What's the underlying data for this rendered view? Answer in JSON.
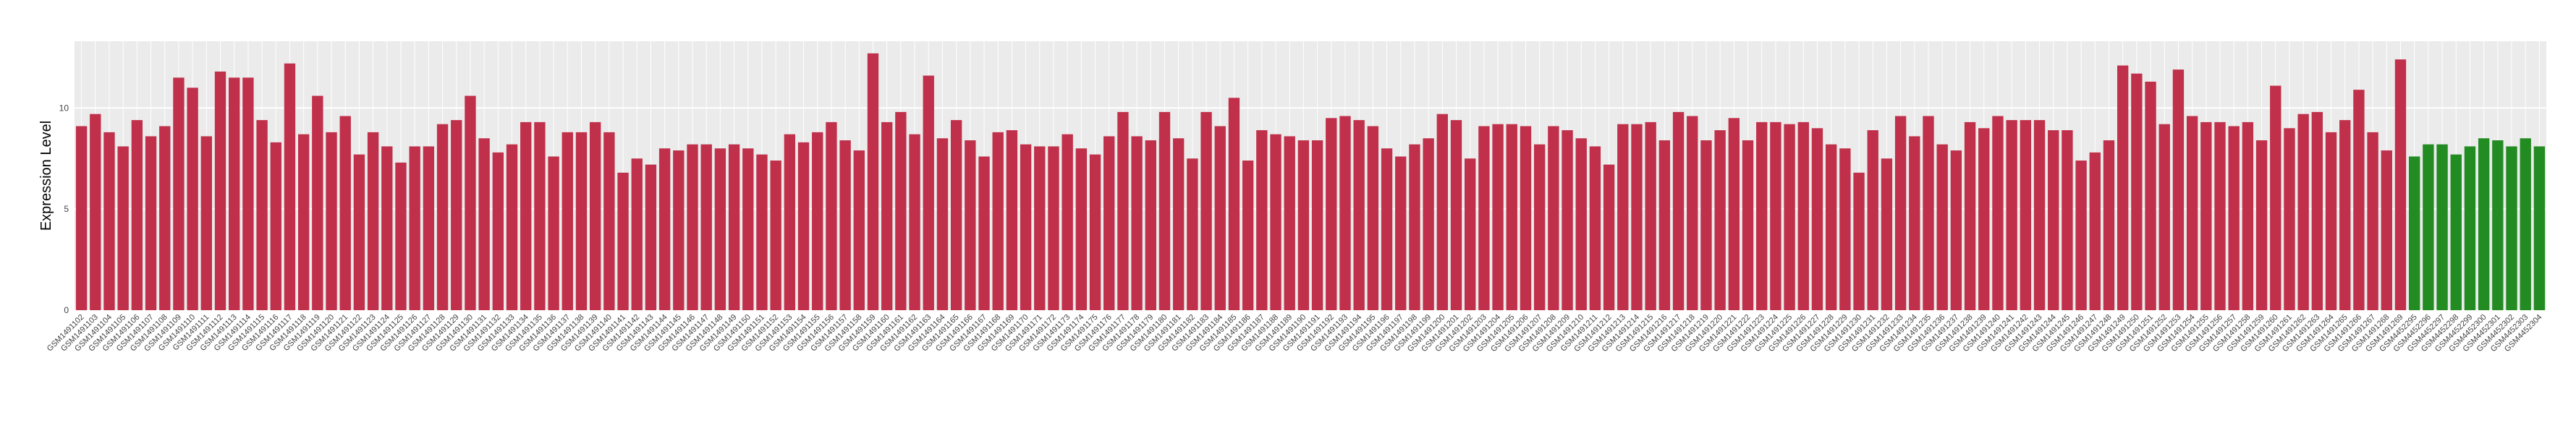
{
  "chart_data": {
    "type": "bar",
    "y_label": "Expression Level",
    "categories": [
      "GSM1491102",
      "GSM1491103",
      "GSM1491104",
      "GSM1491105",
      "GSM1491106",
      "GSM1491107",
      "GSM1491108",
      "GSM1491109",
      "GSM1491110",
      "GSM1491111",
      "GSM1491112",
      "GSM1491113",
      "GSM1491114",
      "GSM1491115",
      "GSM1491116",
      "GSM1491117",
      "GSM1491118",
      "GSM1491119",
      "GSM1491120",
      "GSM1491121",
      "GSM1491122",
      "GSM1491123",
      "GSM1491124",
      "GSM1491125",
      "GSM1491126",
      "GSM1491127",
      "GSM1491128",
      "GSM1491129",
      "GSM1491130",
      "GSM1491131",
      "GSM1491132",
      "GSM1491133",
      "GSM1491134",
      "GSM1491135",
      "GSM1491136",
      "GSM1491137",
      "GSM1491138",
      "GSM1491139",
      "GSM1491140",
      "GSM1491141",
      "GSM1491142",
      "GSM1491143",
      "GSM1491144",
      "GSM1491145",
      "GSM1491146",
      "GSM1491147",
      "GSM1491148",
      "GSM1491149",
      "GSM1491150",
      "GSM1491151",
      "GSM1491152",
      "GSM1491153",
      "GSM1491154",
      "GSM1491155",
      "GSM1491156",
      "GSM1491157",
      "GSM1491158",
      "GSM1491159",
      "GSM1491160",
      "GSM1491161",
      "GSM1491162",
      "GSM1491163",
      "GSM1491164",
      "GSM1491165",
      "GSM1491166",
      "GSM1491167",
      "GSM1491168",
      "GSM1491169",
      "GSM1491170",
      "GSM1491171",
      "GSM1491172",
      "GSM1491173",
      "GSM1491174",
      "GSM1491175",
      "GSM1491176",
      "GSM1491177",
      "GSM1491178",
      "GSM1491179",
      "GSM1491180",
      "GSM1491181",
      "GSM1491182",
      "GSM1491183",
      "GSM1491184",
      "GSM1491185",
      "GSM1491186",
      "GSM1491187",
      "GSM1491188",
      "GSM1491189",
      "GSM1491190",
      "GSM1491191",
      "GSM1491192",
      "GSM1491193",
      "GSM1491194",
      "GSM1491195",
      "GSM1491196",
      "GSM1491197",
      "GSM1491198",
      "GSM1491199",
      "GSM1491200",
      "GSM1491201",
      "GSM1491202",
      "GSM1491203",
      "GSM1491204",
      "GSM1491205",
      "GSM1491206",
      "GSM1491207",
      "GSM1491208",
      "GSM1491209",
      "GSM1491210",
      "GSM1491211",
      "GSM1491212",
      "GSM1491213",
      "GSM1491214",
      "GSM1491215",
      "GSM1491216",
      "GSM1491217",
      "GSM1491218",
      "GSM1491219",
      "GSM1491220",
      "GSM1491221",
      "GSM1491222",
      "GSM1491223",
      "GSM1491224",
      "GSM1491225",
      "GSM1491226",
      "GSM1491227",
      "GSM1491228",
      "GSM1491229",
      "GSM1491230",
      "GSM1491231",
      "GSM1491232",
      "GSM1491233",
      "GSM1491234",
      "GSM1491235",
      "GSM1491236",
      "GSM1491237",
      "GSM1491238",
      "GSM1491239",
      "GSM1491240",
      "GSM1491241",
      "GSM1491242",
      "GSM1491243",
      "GSM1491244",
      "GSM1491245",
      "GSM1491246",
      "GSM1491247",
      "GSM1491248",
      "GSM1491249",
      "GSM1491250",
      "GSM1491251",
      "GSM1491252",
      "GSM1491253",
      "GSM1491254",
      "GSM1491255",
      "GSM1491256",
      "GSM1491257",
      "GSM1491258",
      "GSM1491259",
      "GSM1491260",
      "GSM1491261",
      "GSM1491262",
      "GSM1491263",
      "GSM1491264",
      "GSM1491265",
      "GSM1491266",
      "GSM1491267",
      "GSM1491268",
      "GSM1491269",
      "GSM4452295",
      "GSM4452296",
      "GSM4452297",
      "GSM4452298",
      "GSM4452299",
      "GSM4452300",
      "GSM4452301",
      "GSM4452302",
      "GSM4452303",
      "GSM4452304"
    ],
    "values": [
      9.1,
      9.7,
      8.8,
      8.1,
      9.4,
      8.6,
      9.1,
      11.5,
      11.0,
      8.6,
      11.8,
      11.5,
      11.5,
      9.4,
      8.3,
      12.2,
      8.7,
      10.6,
      8.8,
      9.6,
      7.7,
      8.8,
      8.1,
      7.3,
      8.1,
      8.1,
      9.2,
      9.4,
      10.6,
      8.5,
      7.8,
      8.2,
      9.3,
      9.3,
      7.6,
      8.8,
      8.8,
      9.3,
      8.8,
      6.8,
      7.5,
      7.2,
      8.0,
      7.9,
      8.2,
      8.2,
      8.0,
      8.2,
      8.0,
      7.7,
      7.4,
      8.7,
      8.3,
      8.8,
      9.3,
      8.4,
      7.9,
      12.7,
      9.3,
      9.8,
      8.7,
      11.6,
      8.5,
      9.4,
      8.4,
      7.6,
      8.8,
      8.9,
      8.2,
      8.1,
      8.1,
      8.7,
      8.0,
      7.7,
      8.6,
      9.8,
      8.6,
      8.4,
      9.8,
      8.5,
      7.5,
      9.8,
      9.1,
      10.5,
      7.4,
      8.9,
      8.7,
      8.6,
      8.4,
      8.4,
      9.5,
      9.6,
      9.4,
      9.1,
      8.0,
      7.6,
      8.2,
      8.5,
      9.7,
      9.4,
      7.5,
      9.1,
      9.2,
      9.2,
      9.1,
      8.2,
      9.1,
      8.9,
      8.5,
      8.1,
      7.2,
      9.2,
      9.2,
      9.3,
      8.4,
      9.8,
      9.6,
      8.4,
      8.9,
      9.5,
      8.4,
      9.3,
      9.3,
      9.2,
      9.3,
      9.0,
      8.2,
      8.0,
      6.8,
      8.9,
      7.5,
      9.6,
      8.6,
      9.6,
      8.2,
      7.9,
      9.3,
      9.0,
      9.6,
      9.4,
      9.4,
      9.4,
      8.9,
      8.9,
      7.4,
      7.8,
      8.4,
      12.1,
      11.7,
      11.3,
      9.2,
      11.9,
      9.6,
      9.3,
      9.3,
      9.1,
      9.3,
      8.4,
      11.1,
      9.0,
      9.7,
      9.8,
      8.8,
      9.4,
      10.9,
      8.8,
      7.9,
      12.4,
      7.6,
      8.2,
      8.2,
      7.7,
      8.1,
      8.5,
      8.4,
      8.1,
      8.5,
      8.1
    ],
    "colors": [
      "#c0304a",
      "#228b22"
    ],
    "color_split": 168,
    "ylim": [
      0,
      13.3
    ],
    "yticks": [
      0,
      5,
      10
    ],
    "grid": true
  }
}
